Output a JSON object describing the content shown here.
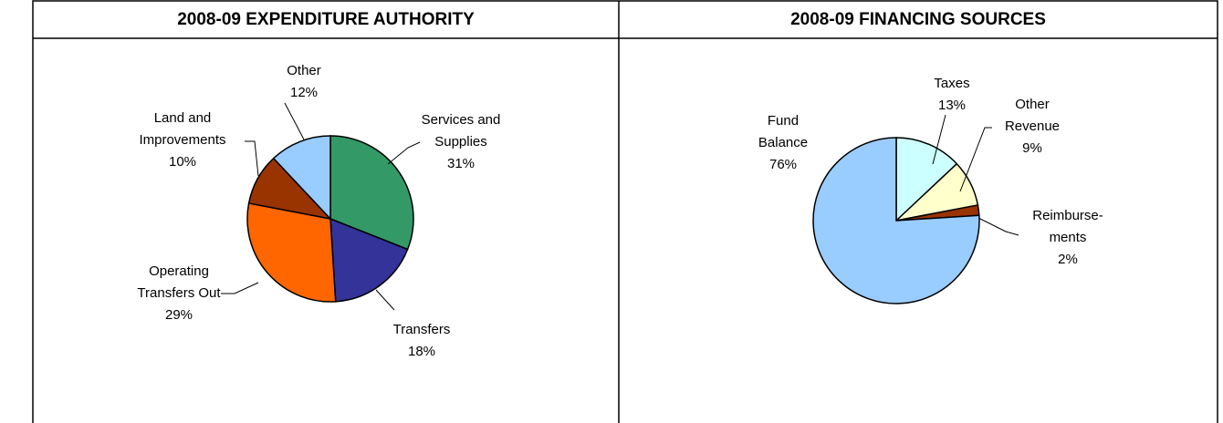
{
  "chart_data": [
    {
      "type": "pie",
      "title": "2008-09 EXPENDITURE AUTHORITY",
      "categories": [
        "Services and\nSupplies",
        "Transfers",
        "Operating\nTransfers Out",
        "Land and\nImprovements",
        "Other"
      ],
      "values": [
        31,
        18,
        29,
        10,
        12
      ],
      "value_labels": [
        "31%",
        "18%",
        "29%",
        "10%",
        "12%"
      ],
      "colors": [
        "#339966",
        "#333399",
        "#ff6600",
        "#993300",
        "#99ccff"
      ]
    },
    {
      "type": "pie",
      "title": "2008-09 FINANCING SOURCES",
      "categories": [
        "Taxes",
        "Other\nRevenue",
        "Reimburse-\nments",
        "Fund\nBalance"
      ],
      "values": [
        13,
        9,
        2,
        76
      ],
      "value_labels": [
        "13%",
        "9%",
        "2%",
        "76%"
      ],
      "colors": [
        "#ccffff",
        "#ffffcc",
        "#993300",
        "#99ccff"
      ]
    }
  ]
}
